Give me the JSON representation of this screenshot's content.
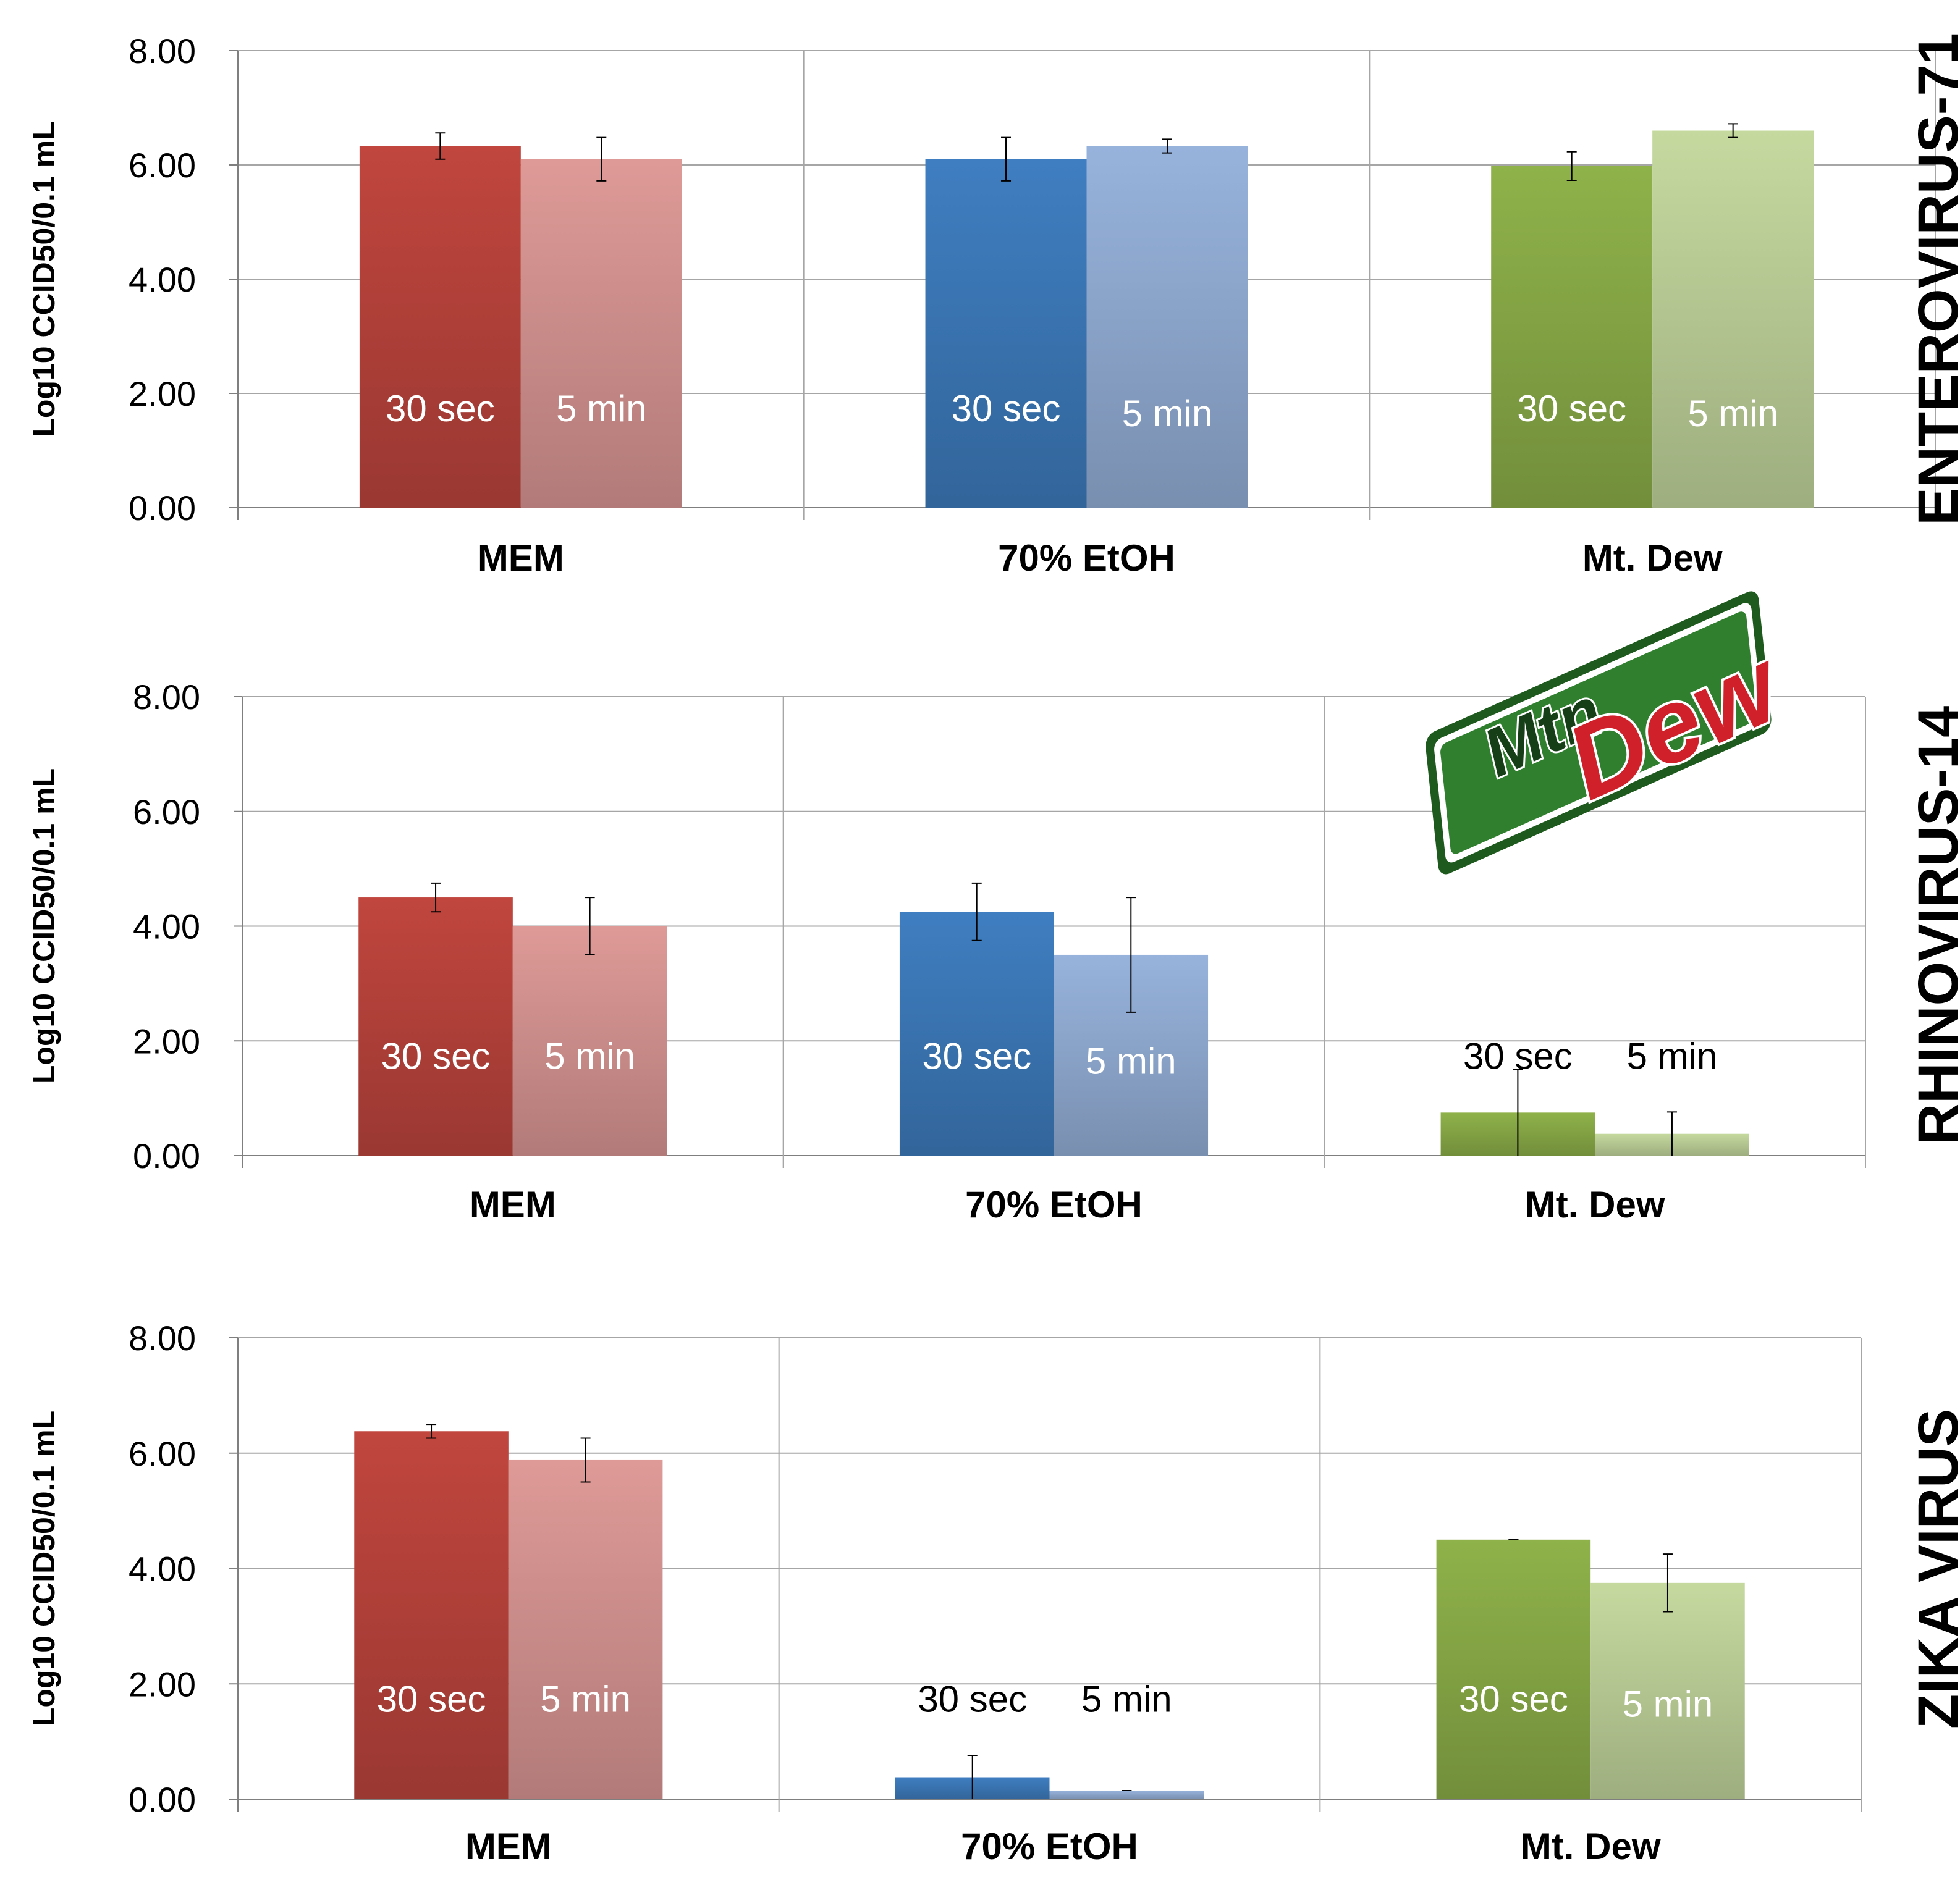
{
  "chart_data": [
    {
      "type": "bar",
      "title": "ENTEROVIRUS-71",
      "ylabel": "Log10 CCID50/0.1 mL",
      "ylim": [
        0,
        8
      ],
      "yticks": [
        "0.00",
        "2.00",
        "4.00",
        "6.00",
        "8.00"
      ],
      "grid": true,
      "categories": [
        "MEM",
        "70% EtOH",
        "Mt. Dew"
      ],
      "series": [
        {
          "name": "30 sec",
          "values": [
            6.33,
            6.1,
            5.98
          ],
          "errors": [
            0.23,
            0.38,
            0.25
          ]
        },
        {
          "name": "5 min",
          "values": [
            6.1,
            6.33,
            6.6
          ],
          "errors": [
            0.38,
            0.12,
            0.12
          ]
        }
      ]
    },
    {
      "type": "bar",
      "title": "RHINOVIRUS-14",
      "ylabel": "Log10 CCID50/0.1 mL",
      "ylim": [
        0,
        8
      ],
      "yticks": [
        "0.00",
        "2.00",
        "4.00",
        "6.00",
        "8.00"
      ],
      "grid": true,
      "categories": [
        "MEM",
        "70% EtOH",
        "Mt. Dew"
      ],
      "series": [
        {
          "name": "30 sec",
          "values": [
            4.5,
            4.25,
            0.75
          ],
          "errors": [
            0.25,
            0.5,
            0.75
          ]
        },
        {
          "name": "5 min",
          "values": [
            4.0,
            3.5,
            0.38
          ],
          "errors": [
            0.5,
            1.0,
            0.38
          ]
        }
      ]
    },
    {
      "type": "bar",
      "title": "ZIKA VIRUS",
      "ylabel": "Log10 CCID50/0.1 mL",
      "ylim": [
        0,
        8
      ],
      "yticks": [
        "0.00",
        "2.00",
        "4.00",
        "6.00",
        "8.00"
      ],
      "grid": true,
      "categories": [
        "MEM",
        "70% EtOH",
        "Mt. Dew"
      ],
      "series": [
        {
          "name": "30 sec",
          "values": [
            6.38,
            0.38,
            4.5
          ],
          "errors": [
            0.12,
            0.38,
            0.0
          ]
        },
        {
          "name": "5 min",
          "values": [
            5.88,
            0.15,
            3.75
          ],
          "errors": [
            0.38,
            0.0,
            0.5
          ]
        }
      ]
    }
  ],
  "colors": {
    "mem_dark": "#c0463e",
    "mem_light": "#de9a97",
    "etoh_dark": "#3f7ec1",
    "etoh_light": "#97b3dc",
    "dew_dark": "#8fb24a",
    "dew_light": "#c5d99f",
    "label_on_bar": "#ffffff",
    "label_off_bar": "#000000",
    "grid": "#a6a6a6"
  },
  "logo": {
    "icon": "mtn-dew-logo-icon",
    "text": "Mtn Dew"
  }
}
